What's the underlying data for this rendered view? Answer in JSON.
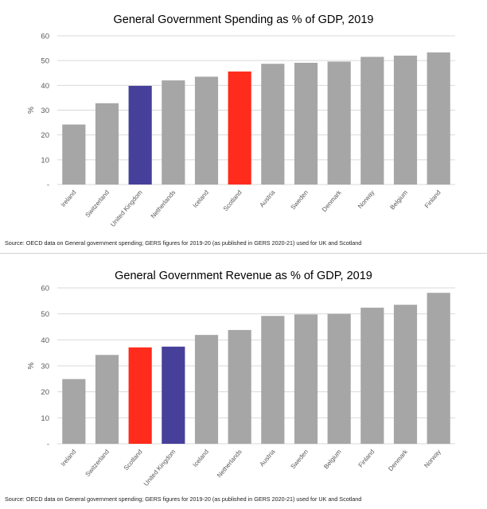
{
  "charts": [
    {
      "source": "Source: OECD data on General government spending; GERS figures for 2019-20 (as published in GERS 2020-21) used for UK and Scotland"
    },
    {
      "source": "Source: OECD data on General government spending; GERS figures for 2019-20 (as published in GERS 2020-21) used for UK and Scotland"
    }
  ],
  "colors": {
    "default_bar": "#a6a6a6",
    "uk_bar": "#47409a",
    "scotland_bar": "#ff2b1c",
    "gridline": "#d9d9d9",
    "axis_text": "#595959"
  },
  "chart_data": [
    {
      "type": "bar",
      "title": "General Government Spending as % of GDP, 2019",
      "xlabel": "",
      "ylabel": "%",
      "ylim": [
        0,
        60
      ],
      "yticks": [
        0,
        10,
        20,
        30,
        40,
        50,
        60
      ],
      "ytick_labels": [
        "-",
        "10",
        "20",
        "30",
        "40",
        "50",
        "60"
      ],
      "grid": true,
      "categories": [
        "Ireland",
        "Switzerland",
        "United Kingdom",
        "Netherlands",
        "Iceland",
        "Scotland",
        "Austria",
        "Sweden",
        "Denmark",
        "Norway",
        "Belgium",
        "Finland"
      ],
      "values": [
        24.2,
        32.8,
        39.8,
        42.0,
        43.5,
        45.6,
        48.7,
        49.1,
        49.6,
        51.5,
        52.0,
        53.3
      ],
      "bar_colors": [
        "#a6a6a6",
        "#a6a6a6",
        "#47409a",
        "#a6a6a6",
        "#a6a6a6",
        "#ff2b1c",
        "#a6a6a6",
        "#a6a6a6",
        "#a6a6a6",
        "#a6a6a6",
        "#a6a6a6",
        "#a6a6a6"
      ]
    },
    {
      "type": "bar",
      "title": "General Government Revenue as % of GDP, 2019",
      "xlabel": "",
      "ylabel": "%",
      "ylim": [
        0,
        60
      ],
      "yticks": [
        0,
        10,
        20,
        30,
        40,
        50,
        60
      ],
      "ytick_labels": [
        "-",
        "10",
        "20",
        "30",
        "40",
        "50",
        "60"
      ],
      "grid": true,
      "categories": [
        "Ireland",
        "Switzerland",
        "Scotland",
        "United Kingdom",
        "Iceland",
        "Netherlands",
        "Austria",
        "Sweden",
        "Belgium",
        "Finland",
        "Denmark",
        "Norway"
      ],
      "values": [
        24.9,
        34.2,
        37.1,
        37.4,
        41.9,
        43.8,
        49.2,
        49.8,
        50.0,
        52.4,
        53.5,
        58.1
      ],
      "bar_colors": [
        "#a6a6a6",
        "#a6a6a6",
        "#ff2b1c",
        "#47409a",
        "#a6a6a6",
        "#a6a6a6",
        "#a6a6a6",
        "#a6a6a6",
        "#a6a6a6",
        "#a6a6a6",
        "#a6a6a6",
        "#a6a6a6"
      ]
    }
  ]
}
